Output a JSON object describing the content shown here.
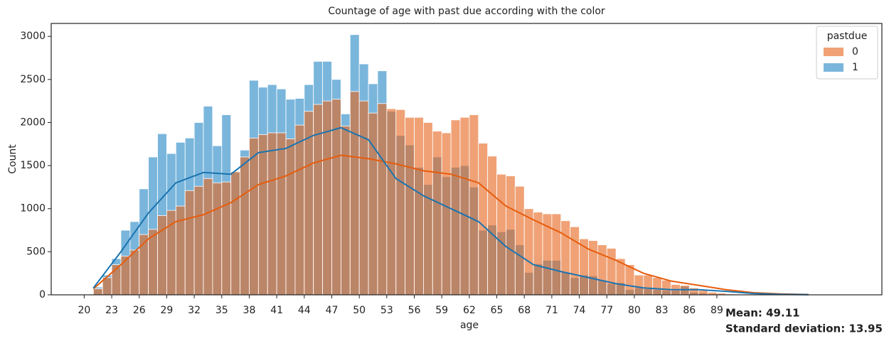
{
  "chart_data": {
    "type": "histogram",
    "title": "Countage of age with past due according with the color",
    "xlabel": "age",
    "ylabel": "Count",
    "legend_title": "pastdue",
    "legend_position": "upper right",
    "bins": [
      21,
      22,
      23,
      24,
      25,
      26,
      27,
      28,
      29,
      30,
      31,
      32,
      33,
      34,
      35,
      36,
      37,
      38,
      39,
      40,
      41,
      42,
      43,
      44,
      45,
      46,
      47,
      48,
      49,
      50,
      51,
      52,
      53,
      54,
      55,
      56,
      57,
      58,
      59,
      60,
      61,
      62,
      63,
      64,
      65,
      66,
      67,
      68,
      69,
      70,
      71,
      72,
      73,
      74,
      75,
      76,
      77,
      78,
      79,
      80,
      81,
      82,
      83,
      84,
      85,
      86,
      87,
      88,
      89,
      90,
      91
    ],
    "series": [
      {
        "name": "0",
        "color": "#e6641a",
        "line_color": "#e65c0c",
        "values": [
          70,
          200,
          350,
          450,
          520,
          700,
          760,
          920,
          980,
          1030,
          1210,
          1260,
          1350,
          1300,
          1310,
          1430,
          1600,
          1820,
          1860,
          1880,
          1880,
          1810,
          1970,
          2130,
          2210,
          2250,
          2270,
          1960,
          2360,
          2250,
          2110,
          2220,
          2160,
          2150,
          2060,
          2060,
          2000,
          1900,
          1880,
          2030,
          2060,
          2090,
          1760,
          1610,
          1400,
          1380,
          1260,
          1000,
          960,
          940,
          940,
          860,
          790,
          650,
          630,
          580,
          540,
          420,
          350,
          230,
          230,
          200,
          170,
          120,
          110,
          80,
          50,
          30,
          20,
          10
        ],
        "kde": [
          70,
          350,
          650,
          850,
          930,
          1070,
          1280,
          1380,
          1530,
          1620,
          1580,
          1520,
          1440,
          1400,
          1300,
          1030,
          870,
          720,
          530,
          400,
          250,
          160,
          110,
          60,
          25,
          10,
          3
        ]
      },
      {
        "name": "1",
        "color": "#7ab6dc",
        "line_color": "#1a74b0",
        "values": [
          90,
          230,
          420,
          750,
          850,
          1230,
          1600,
          1870,
          1640,
          1770,
          1820,
          2000,
          2190,
          1730,
          2090,
          1420,
          1680,
          2490,
          2410,
          2440,
          2390,
          2270,
          2280,
          2440,
          2710,
          2710,
          2500,
          2100,
          3020,
          2680,
          2450,
          2600,
          2130,
          1850,
          1740,
          1480,
          1280,
          1600,
          1370,
          1480,
          1500,
          1250,
          750,
          810,
          730,
          760,
          580,
          260,
          360,
          400,
          400,
          260,
          200,
          230,
          220,
          170,
          130,
          140,
          60,
          80,
          70,
          60,
          50,
          50,
          100,
          30,
          20,
          10,
          5,
          3
        ],
        "kde": [
          80,
          500,
          950,
          1300,
          1420,
          1400,
          1650,
          1700,
          1850,
          1940,
          1800,
          1350,
          1150,
          1000,
          850,
          560,
          350,
          270,
          200,
          130,
          80,
          60,
          60,
          40,
          15,
          5,
          2
        ]
      }
    ],
    "kde_x": [
      21,
      24,
      27,
      30,
      33,
      36,
      39,
      42,
      45,
      48,
      51,
      54,
      57,
      60,
      63,
      66,
      69,
      72,
      75,
      78,
      81,
      84,
      87,
      90,
      93,
      96,
      99
    ],
    "xlim": [
      16.4,
      107
    ],
    "ylim": [
      0,
      3150
    ],
    "xticks": [
      20,
      23,
      26,
      29,
      32,
      35,
      38,
      41,
      44,
      47,
      50,
      53,
      56,
      59,
      62,
      65,
      68,
      71,
      74,
      77,
      80,
      83,
      86,
      89
    ],
    "yticks": [
      0,
      500,
      1000,
      1500,
      2000,
      2500,
      3000
    ],
    "annotations": [
      "Mean: 49.11",
      "Standard deviation: 13.95"
    ]
  }
}
